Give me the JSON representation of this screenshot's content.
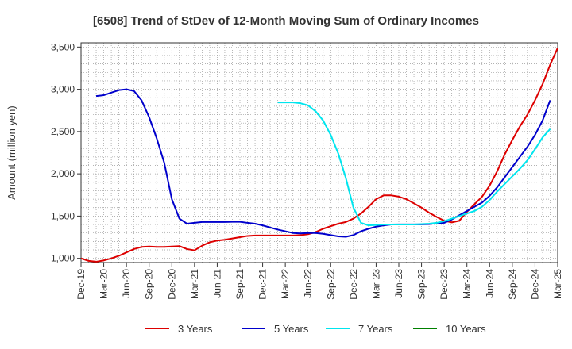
{
  "chart_data": {
    "type": "line",
    "title": "[6508]  Trend of StDev of 12-Month Moving Sum of Ordinary Incomes",
    "ylabel": "Amount (million yen)",
    "xlabel": "",
    "ylim": [
      950,
      3550
    ],
    "yticks": [
      1000,
      1500,
      2000,
      2500,
      3000,
      3500
    ],
    "ytick_labels": [
      "1,000",
      "1,500",
      "2,000",
      "2,500",
      "3,000",
      "3,500"
    ],
    "xticks": [
      "Dec-19",
      "Mar-20",
      "Jun-20",
      "Sep-20",
      "Dec-20",
      "Mar-21",
      "Jun-21",
      "Sep-21",
      "Dec-21",
      "Mar-22",
      "Jun-22",
      "Sep-22",
      "Dec-22",
      "Mar-23",
      "Jun-23",
      "Sep-23",
      "Dec-23",
      "Mar-24",
      "Jun-24",
      "Sep-24",
      "Dec-24",
      "Mar-25"
    ],
    "grid": true,
    "legend_position": "bottom",
    "series": [
      {
        "name": "3 Years",
        "color": "#dd0000",
        "start": "Dec-19",
        "values": [
          1000,
          970,
          960,
          975,
          1000,
          1030,
          1070,
          1110,
          1135,
          1140,
          1135,
          1135,
          1140,
          1145,
          1110,
          1095,
          1150,
          1190,
          1210,
          1220,
          1235,
          1250,
          1265,
          1270,
          1270,
          1270,
          1270,
          1270,
          1270,
          1275,
          1285,
          1310,
          1350,
          1380,
          1410,
          1430,
          1470,
          1530,
          1610,
          1700,
          1745,
          1745,
          1730,
          1700,
          1650,
          1600,
          1540,
          1490,
          1445,
          1425,
          1445,
          1550,
          1640,
          1730,
          1860,
          2030,
          2230,
          2400,
          2560,
          2700,
          2870,
          3060,
          3290,
          3490
        ]
      },
      {
        "name": "5 Years",
        "color": "#0000cc",
        "start": "Dec-19",
        "values": [
          null,
          null,
          2920,
          2930,
          2960,
          2990,
          3000,
          2980,
          2870,
          2670,
          2420,
          2130,
          1700,
          1470,
          1410,
          1420,
          1430,
          1430,
          1430,
          1430,
          1432,
          1432,
          1420,
          1410,
          1390,
          1365,
          1340,
          1320,
          1300,
          1295,
          1300,
          1300,
          1290,
          1275,
          1260,
          1255,
          1275,
          1320,
          1350,
          1375,
          1390,
          1400,
          1402,
          1402,
          1402,
          1402,
          1405,
          1415,
          1420,
          1460,
          1510,
          1560,
          1610,
          1660,
          1740,
          1840,
          1960,
          2080,
          2200,
          2320,
          2460,
          2630,
          2870
        ]
      },
      {
        "name": "7 Years",
        "color": "#00e5ee",
        "start": "Dec-19",
        "values": [
          null,
          null,
          null,
          null,
          null,
          null,
          null,
          null,
          null,
          null,
          null,
          null,
          null,
          null,
          null,
          null,
          null,
          null,
          null,
          null,
          null,
          null,
          null,
          null,
          null,
          null,
          2845,
          2845,
          2845,
          2835,
          2810,
          2740,
          2630,
          2460,
          2240,
          1950,
          1600,
          1420,
          1390,
          1395,
          1400,
          1400,
          1400,
          1400,
          1400,
          1405,
          1410,
          1420,
          1440,
          1470,
          1500,
          1530,
          1560,
          1610,
          1690,
          1790,
          1880,
          1970,
          2060,
          2160,
          2290,
          2430,
          2530
        ]
      },
      {
        "name": "10 Years",
        "color": "#008000",
        "start": "Dec-19",
        "values": []
      }
    ]
  }
}
